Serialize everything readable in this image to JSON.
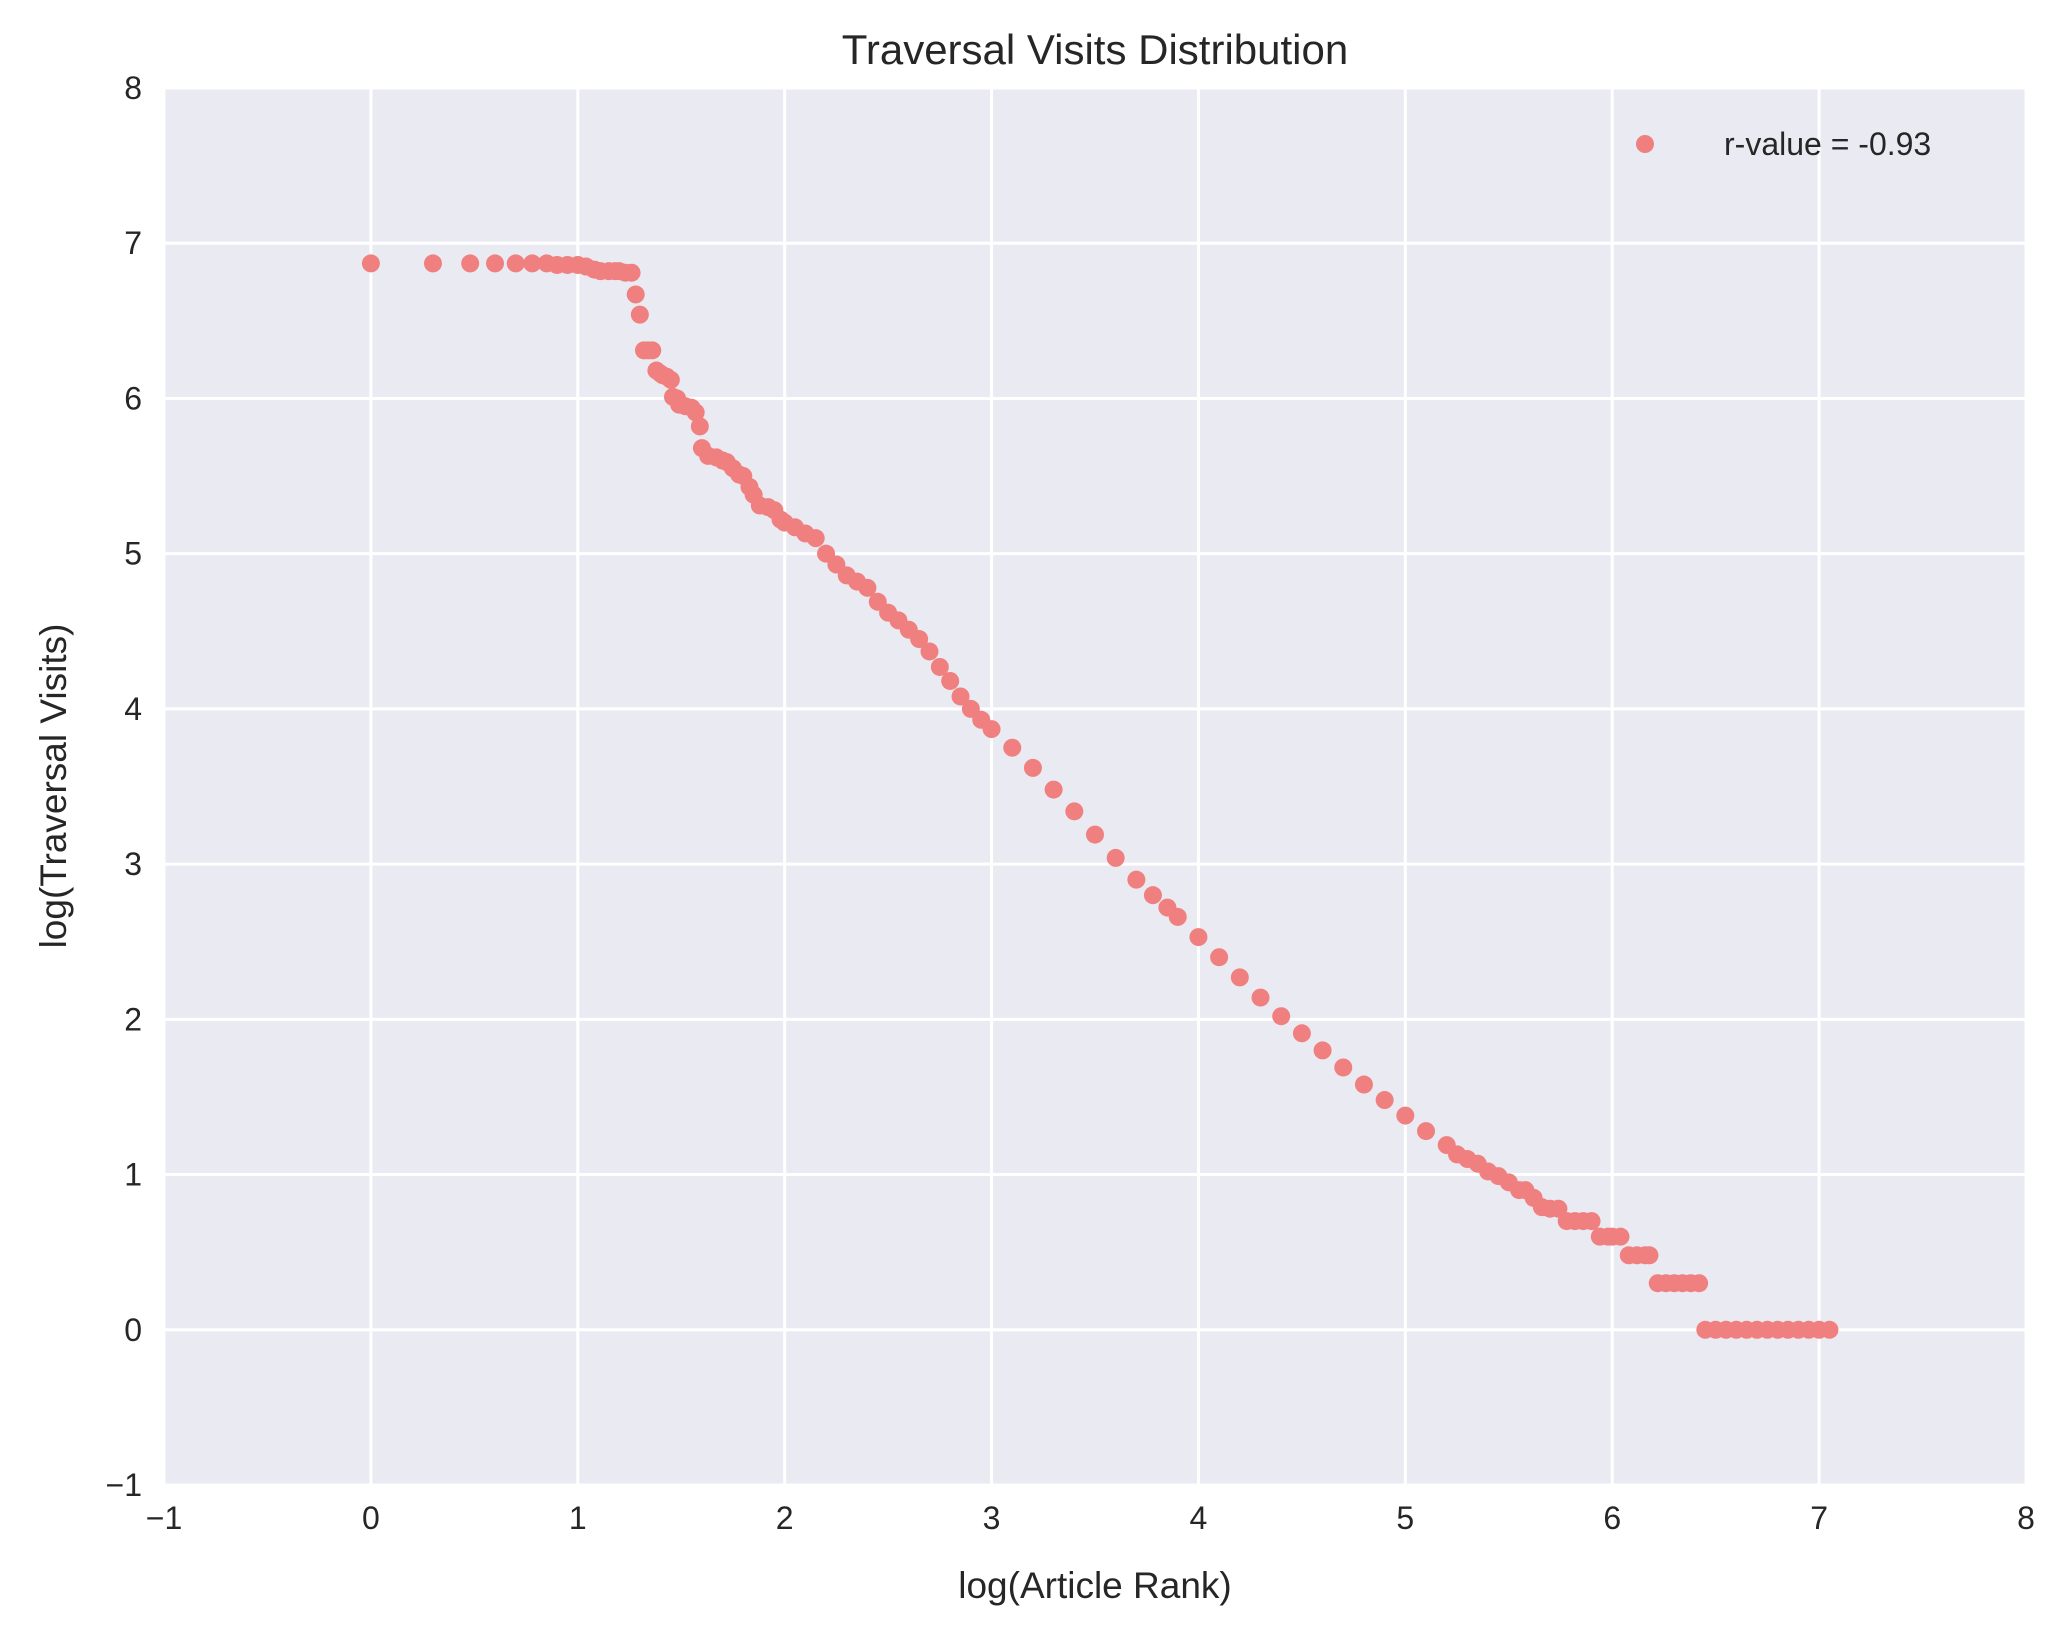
{
  "chart_data": {
    "type": "scatter",
    "title": "Traversal Visits Distribution",
    "xlabel": "log(Article Rank)",
    "ylabel": "log(Traversal Visits)",
    "xlim": [
      -1,
      8
    ],
    "ylim": [
      -1,
      8
    ],
    "xticks": [
      -1,
      0,
      1,
      2,
      3,
      4,
      5,
      6,
      7,
      8
    ],
    "yticks": [
      -1,
      0,
      1,
      2,
      3,
      4,
      5,
      6,
      7,
      8
    ],
    "xtick_labels": [
      "−1",
      "0",
      "1",
      "2",
      "3",
      "4",
      "5",
      "6",
      "7",
      "8"
    ],
    "ytick_labels": [
      "−1",
      "0",
      "1",
      "2",
      "3",
      "4",
      "5",
      "6",
      "7",
      "8"
    ],
    "grid": true,
    "legend_position": "top-right",
    "series": [
      {
        "name": "r-value = -0.93",
        "color": "#f08080",
        "x": [
          0,
          0.3,
          0.48,
          0.6,
          0.7,
          0.78,
          0.85,
          0.9,
          0.95,
          1.0,
          1.04,
          1.08,
          1.11,
          1.15,
          1.18,
          1.2,
          1.23,
          1.26,
          1.28,
          1.3,
          1.32,
          1.34,
          1.36,
          1.38,
          1.4,
          1.41,
          1.43,
          1.45,
          1.46,
          1.48,
          1.49,
          1.52,
          1.55,
          1.57,
          1.59,
          1.6,
          1.63,
          1.67,
          1.7,
          1.72,
          1.75,
          1.78,
          1.8,
          1.83,
          1.85,
          1.88,
          1.92,
          1.95,
          1.98,
          2.0,
          2.05,
          2.1,
          2.15,
          2.2,
          2.25,
          2.3,
          2.35,
          2.4,
          2.45,
          2.5,
          2.55,
          2.6,
          2.65,
          2.7,
          2.75,
          2.8,
          2.85,
          2.9,
          2.95,
          3.0,
          3.1,
          3.2,
          3.3,
          3.4,
          3.5,
          3.6,
          3.7,
          3.78,
          3.85,
          3.9,
          4.0,
          4.1,
          4.2,
          4.3,
          4.4,
          4.5,
          4.6,
          4.7,
          4.8,
          4.9,
          5.0,
          5.1,
          5.2,
          5.25,
          5.3,
          5.35,
          5.4,
          5.45,
          5.5,
          5.55,
          5.58,
          5.62,
          5.66,
          5.7,
          5.74,
          5.78,
          5.82,
          5.86,
          5.9,
          5.94,
          5.98,
          6.0,
          6.04,
          6.08,
          6.12,
          6.16,
          6.18,
          6.22,
          6.26,
          6.3,
          6.34,
          6.38,
          6.42,
          6.45,
          6.5,
          6.55,
          6.6,
          6.65,
          6.7,
          6.75,
          6.8,
          6.85,
          6.9,
          6.95,
          7.0,
          7.05
        ],
        "y": [
          6.87,
          6.87,
          6.87,
          6.87,
          6.87,
          6.87,
          6.87,
          6.86,
          6.86,
          6.86,
          6.85,
          6.83,
          6.82,
          6.82,
          6.82,
          6.82,
          6.81,
          6.81,
          6.67,
          6.54,
          6.31,
          6.31,
          6.31,
          6.18,
          6.16,
          6.15,
          6.14,
          6.12,
          6.01,
          6.0,
          5.96,
          5.95,
          5.94,
          5.91,
          5.82,
          5.68,
          5.63,
          5.62,
          5.6,
          5.59,
          5.55,
          5.51,
          5.5,
          5.43,
          5.38,
          5.31,
          5.3,
          5.28,
          5.22,
          5.2,
          5.17,
          5.13,
          5.1,
          5.0,
          4.93,
          4.86,
          4.82,
          4.78,
          4.69,
          4.62,
          4.57,
          4.51,
          4.45,
          4.37,
          4.27,
          4.18,
          4.08,
          4.0,
          3.93,
          3.87,
          3.75,
          3.62,
          3.48,
          3.34,
          3.19,
          3.04,
          2.9,
          2.8,
          2.72,
          2.66,
          2.53,
          2.4,
          2.27,
          2.14,
          2.02,
          1.91,
          1.8,
          1.69,
          1.58,
          1.48,
          1.38,
          1.28,
          1.19,
          1.13,
          1.1,
          1.07,
          1.02,
          0.99,
          0.95,
          0.9,
          0.9,
          0.85,
          0.79,
          0.78,
          0.78,
          0.7,
          0.7,
          0.7,
          0.7,
          0.6,
          0.6,
          0.6,
          0.6,
          0.48,
          0.48,
          0.48,
          0.48,
          0.3,
          0.3,
          0.3,
          0.3,
          0.3,
          0.3,
          0.0,
          0.0,
          0.0,
          0.0,
          0.0,
          0.0,
          0.0,
          0.0,
          0.0,
          0.0,
          0.0,
          0.0,
          0.0
        ]
      }
    ]
  }
}
